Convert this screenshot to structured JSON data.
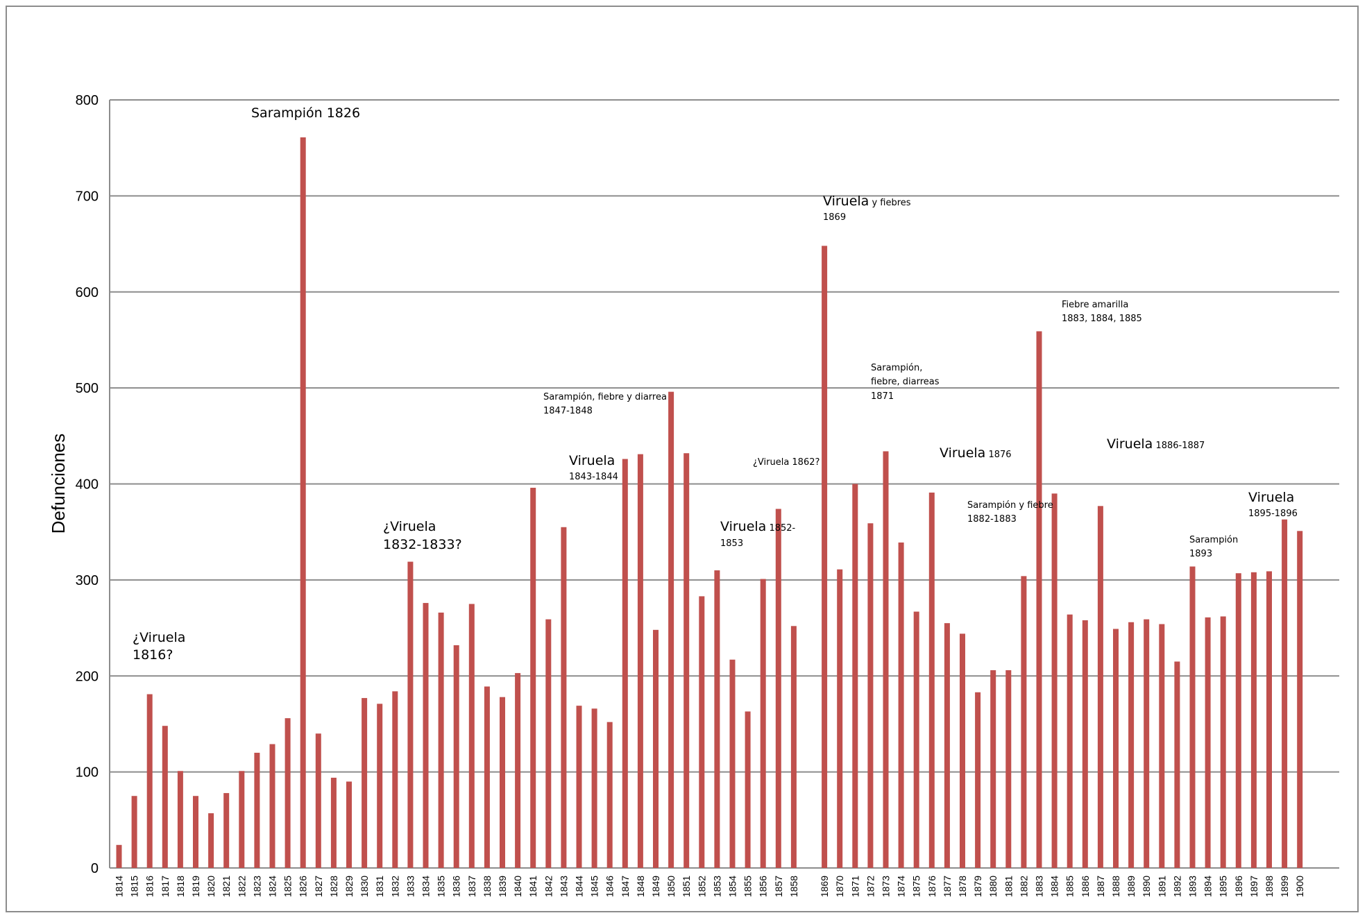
{
  "chart_data": {
    "type": "bar",
    "title": "",
    "xlabel": "",
    "ylabel": "Defunciones",
    "ylim": [
      0,
      800
    ],
    "yticks": [
      "0",
      "100",
      "200",
      "300",
      "400",
      "500",
      "600",
      "700",
      "800"
    ],
    "grid": true,
    "legend": "none",
    "bar_color": "#c0504d",
    "grid_color": "#8c8c8c",
    "categories": [
      "1814",
      "1815",
      "1816",
      "1817",
      "1818",
      "1819",
      "1820",
      "1821",
      "1822",
      "1823",
      "1824",
      "1825",
      "1826",
      "1827",
      "1828",
      "1829",
      "1830",
      "1831",
      "1832",
      "1833",
      "1834",
      "1835",
      "1836",
      "1837",
      "1838",
      "1839",
      "1840",
      "1841",
      "1842",
      "1843",
      "1844",
      "1845",
      "1846",
      "1847",
      "1848",
      "1849",
      "1850",
      "1851",
      "1852",
      "1853",
      "1854",
      "1855",
      "1856",
      "1857",
      "1858",
      "",
      "1869",
      "1870",
      "1871",
      "1872",
      "1873",
      "1874",
      "1875",
      "1876",
      "1877",
      "1878",
      "1879",
      "1880",
      "1881",
      "1882",
      "1883",
      "1884",
      "1885",
      "1886",
      "1887",
      "1888",
      "1889",
      "1890",
      "1891",
      "1892",
      "1893",
      "1894",
      "1895",
      "1896",
      "1897",
      "1898",
      "1899",
      "1900"
    ],
    "values": [
      24,
      75,
      181,
      148,
      101,
      75,
      57,
      78,
      101,
      120,
      129,
      156,
      761,
      140,
      94,
      90,
      177,
      171,
      184,
      319,
      276,
      266,
      232,
      275,
      189,
      178,
      203,
      396,
      259,
      355,
      169,
      166,
      152,
      426,
      431,
      248,
      496,
      432,
      283,
      310,
      217,
      163,
      301,
      374,
      252,
      null,
      648,
      311,
      400,
      359,
      434,
      339,
      267,
      391,
      255,
      244,
      183,
      206,
      206,
      304,
      559,
      390,
      264,
      258,
      377,
      249,
      256,
      259,
      254,
      215,
      314,
      261,
      262,
      307,
      308,
      309,
      363,
      351
    ],
    "annotations": [
      {
        "lines": [
          [
            "Sarampión 1826",
            ""
          ]
        ]
      },
      {
        "lines": [
          [
            "¿Viruela",
            ""
          ],
          [
            "1816?",
            ""
          ]
        ]
      },
      {
        "lines": [
          [
            "¿Viruela",
            ""
          ],
          [
            "1832-1833?",
            ""
          ]
        ]
      },
      {
        "lines": [
          [
            "Viruela",
            ""
          ],
          [
            "",
            "1843-1844"
          ]
        ]
      },
      {
        "lines": [
          [
            "",
            "Sarampión, fiebre y diarrea"
          ],
          [
            "",
            "1847-1848"
          ]
        ]
      },
      {
        "lines": [
          [
            "Viruela",
            " 1852-"
          ],
          [
            "",
            "1853"
          ]
        ]
      },
      {
        "lines": [
          [
            "",
            "¿Viruela 1862?"
          ]
        ]
      },
      {
        "lines": [
          [
            "Viruela",
            " y fiebres"
          ],
          [
            "",
            "1869"
          ]
        ]
      },
      {
        "lines": [
          [
            "",
            "Sarampión,"
          ],
          [
            "",
            "fiebre, diarreas"
          ],
          [
            "",
            "1871"
          ]
        ]
      },
      {
        "lines": [
          [
            "Viruela",
            " 1876"
          ]
        ]
      },
      {
        "lines": [
          [
            "",
            "Sarampión y fiebre"
          ],
          [
            "",
            "1882-1883"
          ]
        ]
      },
      {
        "lines": [
          [
            "",
            "Fiebre amarilla"
          ],
          [
            "",
            "1883, 1884, 1885"
          ]
        ]
      },
      {
        "lines": [
          [
            "Viruela",
            " 1886-1887"
          ]
        ]
      },
      {
        "lines": [
          [
            "",
            "Sarampión"
          ],
          [
            "",
            "1893"
          ]
        ]
      },
      {
        "lines": [
          [
            "Viruela",
            ""
          ],
          [
            "",
            "1895-1896"
          ]
        ]
      }
    ]
  }
}
